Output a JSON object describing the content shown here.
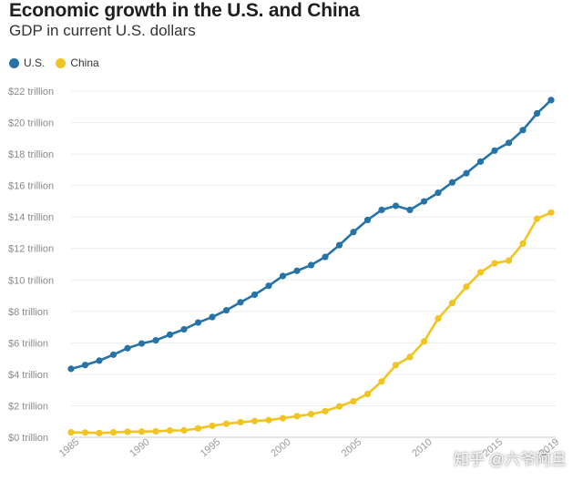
{
  "chart_data": {
    "type": "line",
    "title": "Economic growth in the U.S. and China",
    "subtitle": "GDP in current U.S. dollars",
    "xlabel": "",
    "ylabel": "",
    "xlim": [
      1985,
      2019
    ],
    "ylim": [
      0,
      22
    ],
    "legend_position": "top-left",
    "grid": true,
    "y_ticks": [
      {
        "value": 0,
        "label": "$0 trillion"
      },
      {
        "value": 2,
        "label": "$2 trillion"
      },
      {
        "value": 4,
        "label": "$4 trillion"
      },
      {
        "value": 6,
        "label": "$6 trillion"
      },
      {
        "value": 8,
        "label": "$8 trillion"
      },
      {
        "value": 10,
        "label": "$10 trillion"
      },
      {
        "value": 12,
        "label": "$12 trillion"
      },
      {
        "value": 14,
        "label": "$14 trillion"
      },
      {
        "value": 16,
        "label": "$16 trillion"
      },
      {
        "value": 18,
        "label": "$18 trillion"
      },
      {
        "value": 20,
        "label": "$20 trillion"
      },
      {
        "value": 22,
        "label": "$22 trillion"
      }
    ],
    "x_ticks": [
      {
        "value": 1985,
        "label": "1985"
      },
      {
        "value": 1990,
        "label": "1990"
      },
      {
        "value": 1995,
        "label": "1995"
      },
      {
        "value": 2000,
        "label": "2000"
      },
      {
        "value": 2005,
        "label": "2005"
      },
      {
        "value": 2010,
        "label": "2010"
      },
      {
        "value": 2015,
        "label": "2015"
      },
      {
        "value": 2019,
        "label": "2019"
      }
    ],
    "x": [
      1985,
      1986,
      1987,
      1988,
      1989,
      1990,
      1991,
      1992,
      1993,
      1994,
      1995,
      1996,
      1997,
      1998,
      1999,
      2000,
      2001,
      2002,
      2003,
      2004,
      2005,
      2006,
      2007,
      2008,
      2009,
      2010,
      2011,
      2012,
      2013,
      2014,
      2015,
      2016,
      2017,
      2018,
      2019
    ],
    "series": [
      {
        "name": "U.S.",
        "color": "#2673a8",
        "values": [
          4.35,
          4.59,
          4.87,
          5.25,
          5.66,
          5.96,
          6.16,
          6.52,
          6.86,
          7.29,
          7.64,
          8.07,
          8.58,
          9.06,
          9.63,
          10.25,
          10.58,
          10.94,
          11.46,
          12.21,
          13.04,
          13.81,
          14.45,
          14.71,
          14.45,
          14.99,
          15.54,
          16.2,
          16.78,
          17.52,
          18.22,
          18.71,
          19.52,
          20.58,
          21.43
        ]
      },
      {
        "name": "China",
        "color": "#f2c422",
        "values": [
          0.31,
          0.3,
          0.27,
          0.31,
          0.35,
          0.36,
          0.38,
          0.43,
          0.44,
          0.56,
          0.73,
          0.86,
          0.96,
          1.03,
          1.09,
          1.21,
          1.34,
          1.47,
          1.66,
          1.96,
          2.29,
          2.75,
          3.55,
          4.59,
          5.1,
          6.09,
          7.55,
          8.53,
          9.57,
          10.48,
          11.06,
          11.23,
          12.31,
          13.89,
          14.28
        ]
      }
    ]
  },
  "watermark": {
    "text": "知乎 @六爷阿旦"
  }
}
